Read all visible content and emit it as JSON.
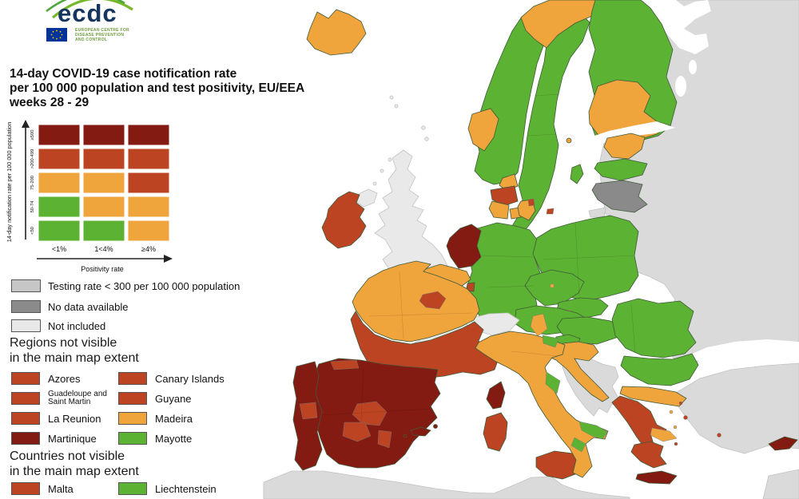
{
  "logo": {
    "text": "ecdc",
    "caption": [
      "EUROPEAN CENTRE FOR",
      "DISEASE PREVENTION",
      "AND CONTROL"
    ]
  },
  "title": {
    "lines": [
      "14-day COVID-19 case notification rate",
      "per 100 000 population and test positivity, EU/EEA",
      "weeks 28 - 29"
    ]
  },
  "matrix_legend": {
    "y_axis_label": "14-day notification rate per 100 000 population",
    "x_axis_label": "Positivity rate",
    "row_labels": [
      "≥500",
      ">200-499",
      "75-200",
      "50-74",
      "<50"
    ],
    "col_labels": [
      "<1%",
      "1<4%",
      "≥4%"
    ],
    "cells": [
      [
        "darkred",
        "darkred",
        "darkred"
      ],
      [
        "red",
        "red",
        "red"
      ],
      [
        "orange",
        "orange",
        "red"
      ],
      [
        "green",
        "orange",
        "orange"
      ],
      [
        "green",
        "green",
        "orange"
      ]
    ]
  },
  "status_legend": [
    {
      "label": "Testing rate < 300 per 100 000 population",
      "category": "testing_low"
    },
    {
      "label": "No data available",
      "category": "no_data"
    },
    {
      "label": "Not included",
      "category": "not_included"
    }
  ],
  "regions_legend": {
    "heading": [
      "Regions not visible",
      "in the main map extent"
    ],
    "items": [
      {
        "label": "Azores",
        "category": "red"
      },
      {
        "label": "Canary Islands",
        "category": "red"
      },
      {
        "label": "Guadeloupe and Saint Martin",
        "category": "red"
      },
      {
        "label": "Guyane",
        "category": "red"
      },
      {
        "label": "La Reunion",
        "category": "red"
      },
      {
        "label": "Madeira",
        "category": "orange"
      },
      {
        "label": "Martinique",
        "category": "darkred"
      },
      {
        "label": "Mayotte",
        "category": "green"
      }
    ]
  },
  "countries_legend": {
    "heading": [
      "Countries not visible",
      "in the main map extent"
    ],
    "items": [
      {
        "label": "Malta",
        "category": "red"
      },
      {
        "label": "Liechtenstein",
        "category": "green"
      }
    ]
  },
  "colors": {
    "green": "#5cb232",
    "orange": "#f0a43c",
    "red": "#bd4423",
    "darkred": "#841b12",
    "no_data": "#8a8a8a",
    "testing_low": "#c6c6c6",
    "not_included": "#e9e9e9",
    "non_eu": "#dadada",
    "sea": "#ffffff"
  },
  "chart_data": {
    "type": "choropleth_map",
    "title": "14-day COVID-19 case notification rate per 100 000 population and test positivity, EU/EEA, weeks 28 - 29",
    "legend_scheme": "bivariate: notification rate (<50, 50-74, 75-200, >200-499, ≥500) x positivity (<1%, 1<4%, ≥4%) -> green/orange/red/darkred",
    "regions": {
      "russia_east": "non_eu",
      "turkey": "non_eu",
      "levant": "non_eu",
      "north_africa": "non_eu",
      "western_balkans": "non_eu",
      "kaliningrad": "non_eu",
      "white_sea": "sea",
      "black_sea": "sea",
      "gulf_of_finland": "sea",
      "lake_ladoga": "sea",
      "lake_onega": "sea",
      "united_kingdom": "not_included",
      "northern_ireland": "not_included",
      "uk_isle_1": "not_included",
      "uk_isle_2": "not_included",
      "uk_isle_3": "not_included",
      "uk_isle_4": "not_included",
      "uk_isle_5": "not_included",
      "uk_isle_6": "not_included",
      "uk_isle_7": "not_included",
      "switzerland": "not_included",
      "ireland": "red",
      "iceland": "orange",
      "norway_main": "green",
      "norway_north": "orange",
      "norway_west": "orange",
      "sweden": "green",
      "gotland": "green",
      "finland_main": "green",
      "finland_south": "orange",
      "aland": "orange",
      "estonia": "orange",
      "latvia": "green",
      "lithuania": "no_data",
      "denmark_north": "orange",
      "denmark_mid": "red",
      "denmark_south": "orange",
      "funen": "orange",
      "zealand": "orange",
      "copenhagen": "red",
      "bornholm": "red",
      "germany": "green",
      "netherlands": "darkred",
      "belgium": "orange",
      "luxembourg": "red",
      "poland": "green",
      "czechia": "green",
      "prague": "orange",
      "slovakia": "green",
      "bratislava_region": "orange",
      "austria": "green",
      "salzburg": "orange",
      "hungary": "green",
      "slovenia": "green",
      "slovenia_coast": "orange",
      "croatia": "orange",
      "romania": "green",
      "bulgaria": "green",
      "greece_north": "orange",
      "greece_mainland": "red",
      "attica": "orange",
      "peloponnese": "red",
      "crete": "darkred",
      "aegean_1": "red",
      "aegean_2": "red",
      "rhodes": "red",
      "cyclades": "red",
      "aegean_orange_1": "orange",
      "aegean_orange_2": "orange",
      "cyprus": "darkred",
      "france_north": "orange",
      "ile_de_france": "red",
      "france_south": "red",
      "spain": "darkred",
      "spain_north": "red",
      "spain_center": "red",
      "spain_south": "red",
      "spain_southeast": "red",
      "portugal": "darkred",
      "portugal_center": "red",
      "balearic_islands": "darkred",
      "balearic_minorca": "darkred",
      "balearic_ibiza": "darkred",
      "corsica": "darkred",
      "sardinia": "red",
      "sicily": "red",
      "italy": "orange",
      "italy_northeast": "green",
      "italy_central_east": "green",
      "puglia": "green",
      "basilicata": "green"
    }
  }
}
